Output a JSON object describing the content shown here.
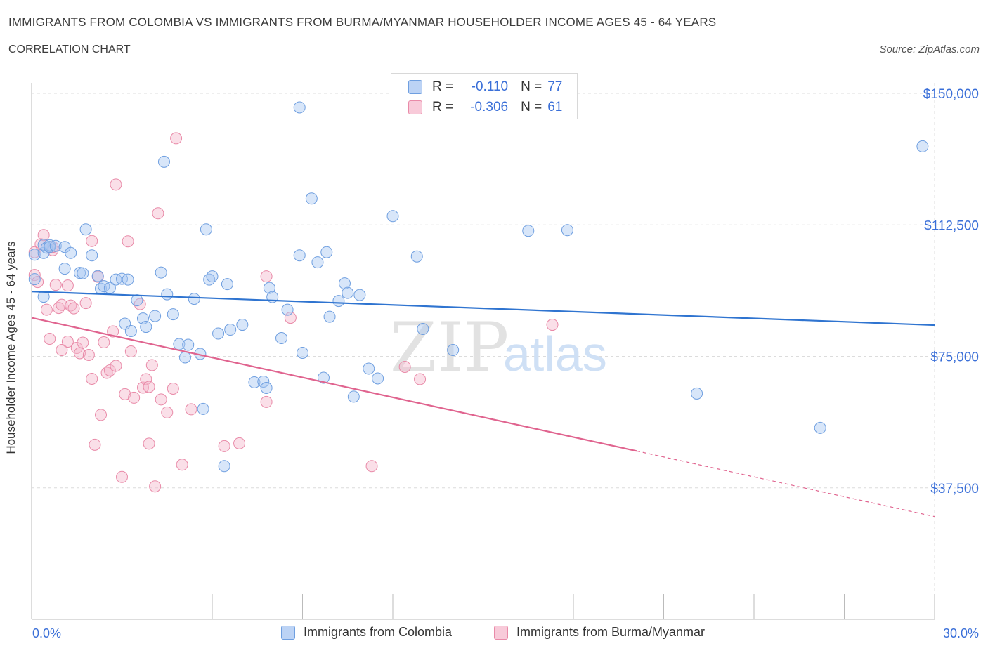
{
  "header": {
    "title": "IMMIGRANTS FROM COLOMBIA VS IMMIGRANTS FROM BURMA/MYANMAR HOUSEHOLDER INCOME AGES 45 - 64 YEARS",
    "subtitle": "CORRELATION CHART",
    "source": "Source: ZipAtlas.com"
  },
  "watermark": {
    "zip": "ZIP",
    "atlas": "atlas"
  },
  "legend": {
    "row1": {
      "r_label": "R =",
      "r_value": "-0.110",
      "n_label": "N =",
      "n_value": "77"
    },
    "row2": {
      "r_label": "R =",
      "r_value": "-0.306",
      "n_label": "N =",
      "n_value": "61"
    }
  },
  "colors": {
    "series1_fill": "#a9c7f2",
    "series1_stroke": "#6f9fe0",
    "series1_line": "#2f74d0",
    "series2_fill": "#f5b9cc",
    "series2_stroke": "#e98aa8",
    "series2_line": "#e0648f",
    "axis_text": "#3a6fd8",
    "grid": "#dcdcdc"
  },
  "chart_data": {
    "type": "scatter",
    "title": "IMMIGRANTS FROM COLOMBIA VS IMMIGRANTS FROM BURMA/MYANMAR HOUSEHOLDER INCOME AGES 45 - 64 YEARS",
    "xlabel": "",
    "ylabel": "Householder Income Ages 45 - 64 years",
    "xlim": [
      0,
      30
    ],
    "ylim": [
      0,
      150000
    ],
    "x_tick_labels": [
      "0.0%",
      "30.0%"
    ],
    "y_ticks": [
      37500,
      75000,
      112500,
      150000
    ],
    "y_tick_labels": [
      "$37,500",
      "$75,000",
      "$112,500",
      "$150,000"
    ],
    "grid": true,
    "legend_position": "top-center",
    "series": [
      {
        "name": "Immigrants from Colombia",
        "R": -0.11,
        "N": 77,
        "trend": {
          "x": [
            0,
            30
          ],
          "y": [
            93500,
            83900
          ]
        },
        "points": [
          [
            0.1,
            104000
          ],
          [
            0.1,
            97000
          ],
          [
            0.4,
            92000
          ],
          [
            0.4,
            104500
          ],
          [
            0.4,
            106800
          ],
          [
            0.5,
            106000
          ],
          [
            0.6,
            106700
          ],
          [
            0.6,
            106200
          ],
          [
            0.8,
            106500
          ],
          [
            1.1,
            106200
          ],
          [
            1.1,
            100000
          ],
          [
            1.3,
            104500
          ],
          [
            1.6,
            98800
          ],
          [
            1.7,
            98700
          ],
          [
            1.8,
            111200
          ],
          [
            2.0,
            103800
          ],
          [
            2.2,
            97900
          ],
          [
            2.3,
            94300
          ],
          [
            2.4,
            95000
          ],
          [
            2.6,
            94500
          ],
          [
            2.8,
            96900
          ],
          [
            3.0,
            97100
          ],
          [
            3.1,
            84300
          ],
          [
            3.2,
            96900
          ],
          [
            3.3,
            82200
          ],
          [
            3.5,
            91000
          ],
          [
            3.7,
            85800
          ],
          [
            3.8,
            83400
          ],
          [
            4.1,
            86500
          ],
          [
            4.3,
            98900
          ],
          [
            4.4,
            130500
          ],
          [
            4.5,
            92700
          ],
          [
            4.7,
            87000
          ],
          [
            4.9,
            78500
          ],
          [
            5.1,
            74700
          ],
          [
            5.2,
            78300
          ],
          [
            5.4,
            91400
          ],
          [
            5.6,
            75700
          ],
          [
            5.7,
            60000
          ],
          [
            5.8,
            111200
          ],
          [
            5.9,
            96900
          ],
          [
            6.0,
            97800
          ],
          [
            6.2,
            81500
          ],
          [
            6.4,
            43700
          ],
          [
            6.5,
            95600
          ],
          [
            6.6,
            82600
          ],
          [
            7.0,
            84000
          ],
          [
            7.4,
            67600
          ],
          [
            7.7,
            67800
          ],
          [
            7.8,
            66000
          ],
          [
            7.9,
            94500
          ],
          [
            8.0,
            91900
          ],
          [
            8.3,
            80200
          ],
          [
            8.5,
            88300
          ],
          [
            8.9,
            103800
          ],
          [
            8.9,
            146000
          ],
          [
            9.0,
            76000
          ],
          [
            9.3,
            120000
          ],
          [
            9.5,
            101800
          ],
          [
            9.7,
            68900
          ],
          [
            9.8,
            104700
          ],
          [
            9.9,
            86300
          ],
          [
            10.2,
            90800
          ],
          [
            10.4,
            95800
          ],
          [
            10.5,
            93100
          ],
          [
            10.7,
            63500
          ],
          [
            10.9,
            92500
          ],
          [
            11.2,
            71500
          ],
          [
            11.5,
            68700
          ],
          [
            12.0,
            115000
          ],
          [
            12.8,
            103500
          ],
          [
            13.0,
            82800
          ],
          [
            14.0,
            76800
          ],
          [
            16.5,
            110800
          ],
          [
            17.8,
            111000
          ],
          [
            22.1,
            64400
          ],
          [
            26.2,
            54600
          ],
          [
            29.6,
            134900
          ]
        ]
      },
      {
        "name": "Immigrants from Burma/Myanmar",
        "R": -0.306,
        "N": 61,
        "trend": {
          "x": [
            0,
            20.1
          ],
          "y": [
            86000,
            48000
          ]
        },
        "trend_dashed": {
          "x": [
            20.1,
            30
          ],
          "y": [
            48000,
            29300
          ]
        },
        "points": [
          [
            0.1,
            104700
          ],
          [
            0.1,
            98200
          ],
          [
            0.2,
            96200
          ],
          [
            0.3,
            107000
          ],
          [
            0.4,
            109600
          ],
          [
            0.5,
            88300
          ],
          [
            0.6,
            80000
          ],
          [
            0.7,
            105300
          ],
          [
            0.7,
            106200
          ],
          [
            0.8,
            95400
          ],
          [
            0.9,
            88800
          ],
          [
            1.0,
            89700
          ],
          [
            1.0,
            76800
          ],
          [
            1.2,
            95200
          ],
          [
            1.2,
            79200
          ],
          [
            1.3,
            89500
          ],
          [
            1.4,
            88700
          ],
          [
            1.5,
            77400
          ],
          [
            1.6,
            75900
          ],
          [
            1.7,
            78900
          ],
          [
            1.8,
            90200
          ],
          [
            1.9,
            75400
          ],
          [
            2.0,
            68600
          ],
          [
            2.0,
            107900
          ],
          [
            2.1,
            49800
          ],
          [
            2.2,
            97700
          ],
          [
            2.3,
            58300
          ],
          [
            2.4,
            79000
          ],
          [
            2.5,
            70300
          ],
          [
            2.6,
            71000
          ],
          [
            2.7,
            82100
          ],
          [
            2.8,
            124000
          ],
          [
            2.8,
            72300
          ],
          [
            3.0,
            40600
          ],
          [
            3.1,
            64200
          ],
          [
            3.2,
            107800
          ],
          [
            3.3,
            76400
          ],
          [
            3.4,
            63200
          ],
          [
            3.6,
            89900
          ],
          [
            3.7,
            66100
          ],
          [
            3.8,
            68500
          ],
          [
            3.9,
            50100
          ],
          [
            3.9,
            66300
          ],
          [
            4.0,
            72500
          ],
          [
            4.1,
            37900
          ],
          [
            4.2,
            115800
          ],
          [
            4.3,
            62700
          ],
          [
            4.5,
            59000
          ],
          [
            4.7,
            65800
          ],
          [
            4.8,
            137200
          ],
          [
            5.0,
            44100
          ],
          [
            5.3,
            59900
          ],
          [
            6.4,
            49400
          ],
          [
            6.9,
            50200
          ],
          [
            7.8,
            62000
          ],
          [
            7.8,
            97800
          ],
          [
            8.6,
            86000
          ],
          [
            11.3,
            43700
          ],
          [
            12.4,
            72000
          ],
          [
            12.9,
            68500
          ],
          [
            17.3,
            84000
          ]
        ]
      }
    ]
  },
  "bottom_legend": {
    "item1": "Immigrants from Colombia",
    "item2": "Immigrants from Burma/Myanmar"
  }
}
